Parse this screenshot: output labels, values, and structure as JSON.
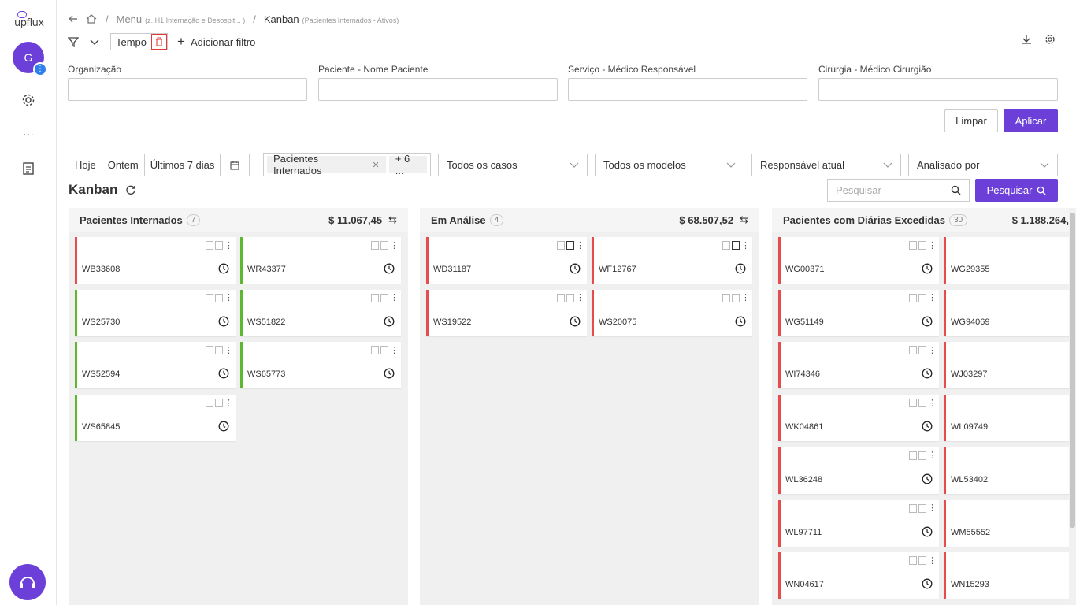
{
  "sidebar": {
    "logo_text": "upflux",
    "avatar_initial": "G",
    "badge": "⋮",
    "more_label": "···"
  },
  "breadcrumb": {
    "menu": "Menu",
    "menu_sub": "(z. H1.Internação e Desospit... )",
    "current": "Kanban",
    "current_sub": "(Pacientes Internados - Ativos)"
  },
  "filterbar": {
    "tempo_label": "Tempo",
    "add_filter_label": "Adicionar filtro"
  },
  "fields": [
    {
      "label": "Organização",
      "value": ""
    },
    {
      "label": "Paciente - Nome Paciente",
      "value": ""
    },
    {
      "label": "Serviço - Médico Responsável",
      "value": ""
    },
    {
      "label": "Cirurgia - Médico Cirurgião",
      "value": ""
    }
  ],
  "actions": {
    "clear_label": "Limpar",
    "apply_label": "Aplicar"
  },
  "date_filters": [
    "Hoje",
    "Ontem",
    "Últimos 7 dias"
  ],
  "status_filter": {
    "tag": "Pacientes Internados",
    "more": "+ 6 ..."
  },
  "selects": [
    "Todos os casos",
    "Todos os modelos",
    "Responsável atual",
    "Analisado por"
  ],
  "kanban": {
    "title": "Kanban",
    "search_placeholder": "Pesquisar",
    "search_button": "Pesquisar"
  },
  "columns": [
    {
      "title": "Pacientes Internados",
      "count": "7",
      "total": "$ 11.067,45",
      "cards": [
        {
          "code": "WB33608",
          "status": "red"
        },
        {
          "code": "WR43377",
          "status": "green"
        },
        {
          "code": "WS25730",
          "status": "green"
        },
        {
          "code": "WS51822",
          "status": "green"
        },
        {
          "code": "WS52594",
          "status": "green"
        },
        {
          "code": "WS65773",
          "status": "green"
        },
        {
          "code": "WS65845",
          "status": "green"
        }
      ]
    },
    {
      "title": "Em Análise",
      "count": "4",
      "total": "$ 68.507,52",
      "cards": [
        {
          "code": "WD31187",
          "status": "red"
        },
        {
          "code": "WF12767",
          "status": "red"
        },
        {
          "code": "WS19522",
          "status": "red"
        },
        {
          "code": "WS20075",
          "status": "red"
        }
      ]
    },
    {
      "title": "Pacientes com Diárias Excedidas",
      "count": "30",
      "total": "$ 1.188.264,",
      "cards": [
        {
          "code": "WG00371",
          "status": "red"
        },
        {
          "code": "WG29355",
          "status": "red"
        },
        {
          "code": "WG51149",
          "status": "red"
        },
        {
          "code": "WG94069",
          "status": "red"
        },
        {
          "code": "WI74346",
          "status": "red"
        },
        {
          "code": "WJ03297",
          "status": "red"
        },
        {
          "code": "WK04861",
          "status": "red"
        },
        {
          "code": "WL09749",
          "status": "red"
        },
        {
          "code": "WL36248",
          "status": "red"
        },
        {
          "code": "WL53402",
          "status": "red"
        },
        {
          "code": "WL97711",
          "status": "red"
        },
        {
          "code": "WM55552",
          "status": "red"
        },
        {
          "code": "WN04617",
          "status": "red"
        },
        {
          "code": "WN15293",
          "status": "red"
        }
      ]
    }
  ],
  "colors": {
    "accent": "#6b3fd8",
    "red": "#e74c4c",
    "green": "#5cb82e"
  }
}
